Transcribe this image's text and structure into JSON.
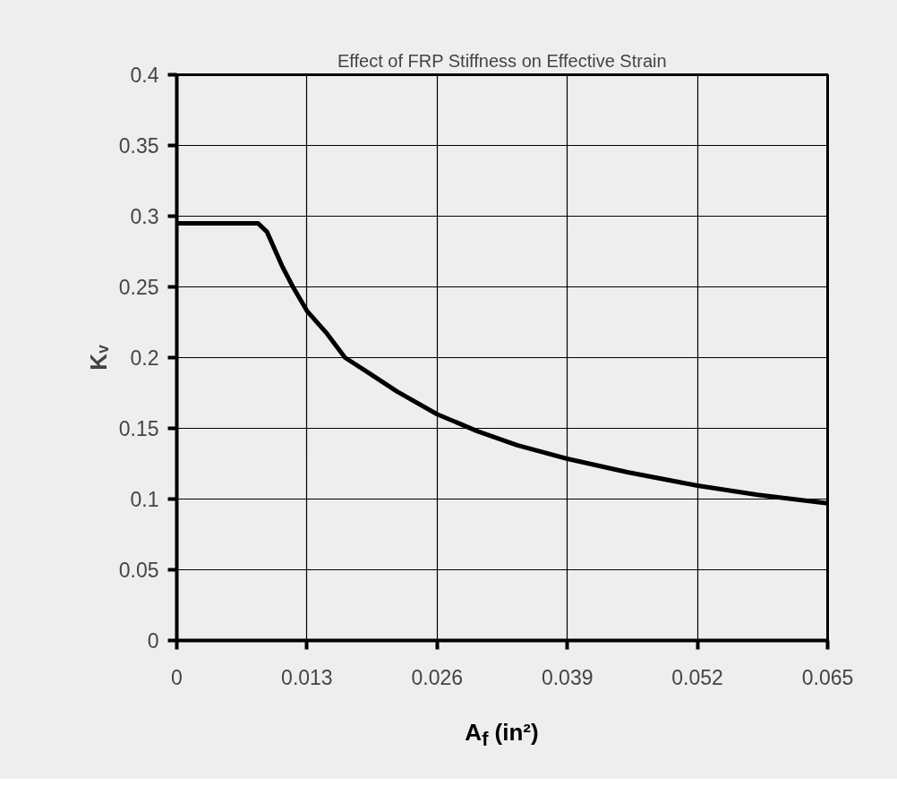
{
  "chart_data": {
    "type": "line",
    "title": "Effect of FRP Stiffness on Effective Strain",
    "xlabel": "A$_{f}$ (in²)",
    "ylabel": "Kᵥ",
    "x": [
      0,
      0.0081,
      0.009,
      0.0105,
      0.0116,
      0.013,
      0.015,
      0.0168,
      0.019,
      0.022,
      0.026,
      0.03,
      0.034,
      0.039,
      0.045,
      0.052,
      0.058,
      0.065
    ],
    "series": [
      {
        "color": "#000000",
        "values": [
          0.295,
          0.295,
          0.289,
          0.265,
          0.25,
          0.233,
          0.217,
          0.2,
          0.19,
          0.176,
          0.16,
          0.148,
          0.138,
          0.1285,
          0.119,
          0.1095,
          0.103,
          0.097
        ]
      }
    ],
    "xlim": [
      0,
      0.065
    ],
    "xticks": [
      0,
      0.013,
      0.026,
      0.039,
      0.052,
      0.065
    ],
    "ylim": [
      0,
      0.4
    ],
    "yticks": [
      0,
      0.05,
      0.1,
      0.15,
      0.2,
      0.25,
      0.3,
      0.35,
      0.4
    ],
    "grid": true,
    "marker": "none",
    "line_style": "solid"
  }
}
